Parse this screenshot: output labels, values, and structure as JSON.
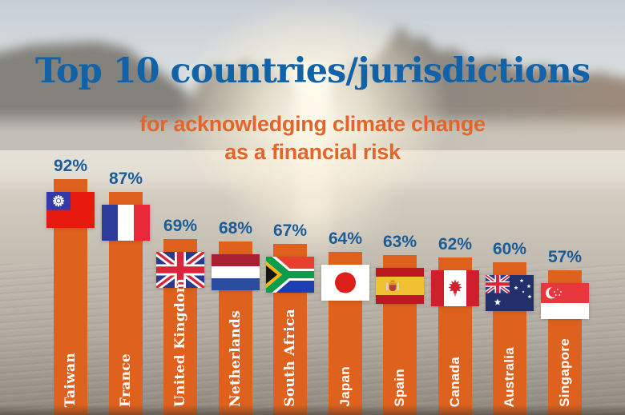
{
  "title": "Top 10 countries/jurisdictions",
  "subtitle": {
    "line1": "for acknowledging climate change",
    "line2": "as a financial risk"
  },
  "colors": {
    "title_blue": "#1262A8",
    "subtitle_orange": "#E3652C",
    "bar_orange": "#DE621E",
    "value_blue": "#1B5C96",
    "label_white": "#FFFFFF"
  },
  "chart_data": {
    "type": "bar",
    "orientation": "vertical",
    "title": "Top 10 countries/jurisdictions for acknowledging climate change as a financial risk",
    "categories": [
      "Taiwan",
      "France",
      "United Kingdom",
      "Netherlands",
      "South Africa",
      "Japan",
      "Spain",
      "Canada",
      "Australia",
      "Singapore"
    ],
    "values": [
      92,
      87,
      69,
      68,
      67,
      64,
      63,
      62,
      60,
      57
    ],
    "value_suffix": "%",
    "value_labels": [
      "92%",
      "87%",
      "69%",
      "68%",
      "67%",
      "64%",
      "63%",
      "62%",
      "60%",
      "57%"
    ],
    "flags": [
      "taiwan-flag-icon",
      "france-flag-icon",
      "united-kingdom-flag-icon",
      "netherlands-flag-icon",
      "south-africa-flag-icon",
      "japan-flag-icon",
      "spain-flag-icon",
      "canada-flag-icon",
      "australia-flag-icon",
      "singapore-flag-icon"
    ],
    "flag_ids": [
      "tw",
      "fr",
      "uk",
      "nl",
      "za",
      "jp",
      "es",
      "ca",
      "au",
      "sg"
    ],
    "ylim": [
      0,
      100
    ],
    "grid": false,
    "legend": false
  }
}
